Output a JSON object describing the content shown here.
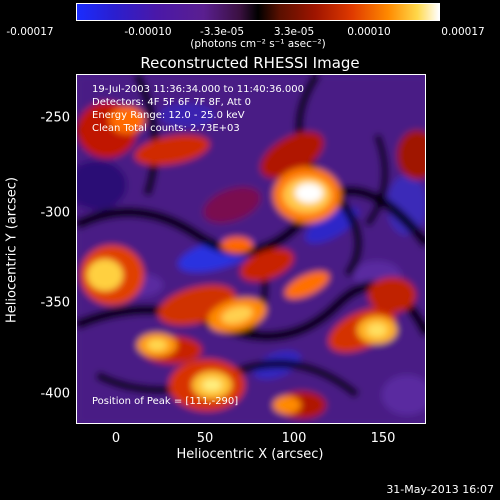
{
  "colorbar": {
    "ticks": [
      "-0.00017",
      "-0.00010",
      "-3.3e-05",
      "3.3e-05",
      "0.00010",
      "0.00017"
    ],
    "units": "(photons cm⁻² s⁻¹ asec⁻²)"
  },
  "plot": {
    "title": "Reconstructed RHESSI Image",
    "info": {
      "time": "19-Jul-2003 11:36:34.000 to 11:40:36.000",
      "detectors": "Detectors: 4F 5F 6F 7F 8F, Att 0",
      "energy": "Energy Range: 12.0 - 25.0 keV",
      "clean": "Clean    Total counts: 2.73E+03",
      "peak": "Position of Peak = [111,-290]"
    },
    "xlabel": "Heliocentric X (arcsec)",
    "ylabel": "Heliocentric Y (arcsec)",
    "xticks": [
      "0",
      "50",
      "100",
      "150"
    ],
    "yticks": [
      "-250",
      "-300",
      "-350",
      "-400"
    ]
  },
  "footer": "31-May-2013 16:07"
}
